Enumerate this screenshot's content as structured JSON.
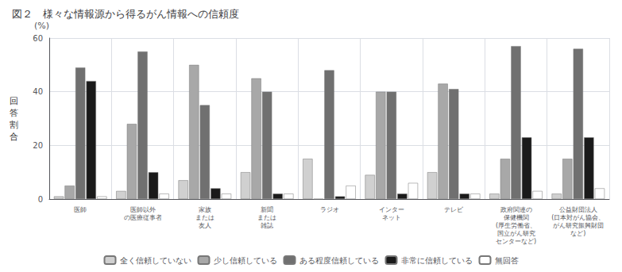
{
  "chart_data": {
    "type": "bar",
    "title": "図２　様々な情報源から得るがん情報への信頼度",
    "ylabel": "回\n答\n割\n合",
    "annotations": [
      "(%)"
    ],
    "categories": [
      "医師",
      "医師以外\nの医療従事者",
      "家族\nまたは\n友人",
      "新聞\nまたは\n雑誌",
      "ラジオ",
      "インター\nネット",
      "テレビ",
      "政府関連の\n保健機関\n(厚生労働省、\n国立がん研究\nセンターなど)",
      "公益財団法人\n(日本対がん協会、\nがん研究振興財団\nなど)"
    ],
    "series": [
      {
        "name": "全く信頼していない",
        "color": "#d0d0d0",
        "values": [
          1,
          3,
          7,
          10,
          15,
          9,
          10,
          2,
          2
        ]
      },
      {
        "name": "少し信頼している",
        "color": "#a8a8a8",
        "values": [
          5,
          28,
          50,
          45,
          0,
          40,
          43,
          15,
          15
        ]
      },
      {
        "name": "ある程度信頼している",
        "color": "#707070",
        "values": [
          49,
          55,
          35,
          40,
          48,
          40,
          41,
          57,
          56
        ]
      },
      {
        "name": "非常に信頼している",
        "color": "#1a1a1a",
        "values": [
          44,
          10,
          4,
          2,
          1,
          2,
          2,
          23,
          23
        ]
      },
      {
        "name": "無回答",
        "color": "#ffffff",
        "values": [
          1,
          2,
          2,
          2,
          5,
          6,
          2,
          3,
          4
        ]
      }
    ],
    "ylim": [
      0,
      60
    ],
    "yticks": [
      0,
      20,
      40,
      60
    ],
    "grid": true,
    "legend": "bottom"
  }
}
